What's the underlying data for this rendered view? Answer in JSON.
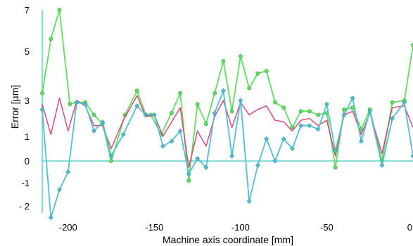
{
  "chart_data": {
    "type": "line",
    "title": "",
    "xlabel": "Machine axis coordinate [mm]",
    "ylabel": "Error [µm]",
    "xlim": [
      -215,
      0
    ],
    "ylim": [
      -2.3,
      7.4
    ],
    "x_ticks": [
      -200,
      -150,
      -100,
      -50,
      0
    ],
    "x_tick_labels": [
      "-200",
      "-150",
      "-100",
      "-50",
      "0"
    ],
    "y_ticks": [
      7,
      5,
      3,
      1,
      0,
      -1,
      -2
    ],
    "y_tick_labels": [
      "7",
      "5",
      "3",
      "1",
      "0",
      "-1",
      "- 2"
    ],
    "y_tick_pixel_anchor": {
      "note": "axis is piecewise / non-uniform as drawn"
    },
    "grid": false,
    "legend": "none",
    "baseline_color": "#5fd0cf",
    "series": [
      {
        "color": "#5fe05f",
        "marker": "circle",
        "points": [
          [
            -215,
            3.3
          ],
          [
            -210,
            5.6
          ],
          [
            -205,
            7.0
          ],
          [
            -199,
            2.8
          ],
          [
            -195,
            2.9
          ],
          [
            -190,
            2.9
          ],
          [
            -185,
            2.2
          ],
          [
            -180,
            1.7
          ],
          [
            -175,
            0.0
          ],
          [
            -167,
            2.2
          ],
          [
            -160,
            3.4
          ],
          [
            -155,
            2.2
          ],
          [
            -152,
            2.2
          ],
          [
            -146,
            1.1
          ],
          [
            -140,
            2.3
          ],
          [
            -135,
            3.3
          ],
          [
            -130,
            -0.9
          ],
          [
            -125,
            2.8
          ],
          [
            -120,
            1.7
          ],
          [
            -115,
            3.3
          ],
          [
            -110,
            4.6
          ],
          [
            -105,
            2.4
          ],
          [
            -100,
            4.8
          ],
          [
            -95,
            3.5
          ],
          [
            -90,
            4.1
          ],
          [
            -85,
            4.2
          ],
          [
            -80,
            2.9
          ],
          [
            -75,
            2.6
          ],
          [
            -70,
            1.5
          ],
          [
            -65,
            2.4
          ],
          [
            -60,
            2.4
          ],
          [
            -55,
            2.2
          ],
          [
            -50,
            2.3
          ],
          [
            -45,
            -0.3
          ],
          [
            -40,
            2.5
          ],
          [
            -35,
            2.6
          ],
          [
            -30,
            1.4
          ],
          [
            -25,
            2.5
          ],
          [
            -18,
            0.0
          ],
          [
            -12,
            2.9
          ],
          [
            -5,
            3.0
          ],
          [
            0,
            5.3
          ]
        ]
      },
      {
        "color": "#e04070",
        "marker": "none",
        "points": [
          [
            -215,
            2.8
          ],
          [
            -210,
            1.1
          ],
          [
            -205,
            3.1
          ],
          [
            -200,
            1.3
          ],
          [
            -195,
            3.0
          ],
          [
            -190,
            2.7
          ],
          [
            -185,
            1.6
          ],
          [
            -180,
            1.6
          ],
          [
            -175,
            0.5
          ],
          [
            -168,
            1.9
          ],
          [
            -160,
            3.2
          ],
          [
            -155,
            2.1
          ],
          [
            -150,
            2.2
          ],
          [
            -145,
            1.0
          ],
          [
            -140,
            1.8
          ],
          [
            -135,
            2.6
          ],
          [
            -130,
            -0.3
          ],
          [
            -125,
            1.3
          ],
          [
            -120,
            0.6
          ],
          [
            -115,
            2.1
          ],
          [
            -110,
            3.0
          ],
          [
            -105,
            1.5
          ],
          [
            -100,
            2.9
          ],
          [
            -95,
            2.2
          ],
          [
            -90,
            2.5
          ],
          [
            -85,
            2.7
          ],
          [
            -80,
            1.9
          ],
          [
            -75,
            1.8
          ],
          [
            -70,
            1.3
          ],
          [
            -65,
            1.9
          ],
          [
            -60,
            2.0
          ],
          [
            -55,
            1.6
          ],
          [
            -50,
            1.9
          ],
          [
            -45,
            0.2
          ],
          [
            -40,
            2.2
          ],
          [
            -35,
            2.4
          ],
          [
            -30,
            1.1
          ],
          [
            -25,
            2.3
          ],
          [
            -18,
            0.3
          ],
          [
            -12,
            2.6
          ],
          [
            -5,
            2.7
          ],
          [
            0,
            1.5
          ]
        ]
      },
      {
        "color": "#50c0d8",
        "marker": "diamond",
        "points": [
          [
            -215,
            2.5
          ],
          [
            -210,
            -2.5
          ],
          [
            -205,
            -1.3
          ],
          [
            -200,
            -0.5
          ],
          [
            -195,
            2.9
          ],
          [
            -190,
            2.8
          ],
          [
            -185,
            1.3
          ],
          [
            -180,
            1.8
          ],
          [
            -175,
            0.2
          ],
          [
            -168,
            1.1
          ],
          [
            -160,
            2.7
          ],
          [
            -155,
            2.2
          ],
          [
            -150,
            2.2
          ],
          [
            -145,
            0.6
          ],
          [
            -140,
            0.8
          ],
          [
            -135,
            1.3
          ],
          [
            -130,
            -0.6
          ],
          [
            -125,
            0.1
          ],
          [
            -120,
            -0.3
          ],
          [
            -115,
            2.3
          ],
          [
            -110,
            3.4
          ],
          [
            -105,
            0.2
          ],
          [
            -100,
            3.0
          ],
          [
            -95,
            -1.8
          ],
          [
            -90,
            -0.2
          ],
          [
            -85,
            0.9
          ],
          [
            -80,
            0.0
          ],
          [
            -75,
            0.9
          ],
          [
            -70,
            0.5
          ],
          [
            -65,
            1.6
          ],
          [
            -60,
            1.6
          ],
          [
            -55,
            1.4
          ],
          [
            -50,
            2.8
          ],
          [
            -45,
            0.4
          ],
          [
            -40,
            2.2
          ],
          [
            -35,
            3.1
          ],
          [
            -30,
            0.8
          ],
          [
            -25,
            2.4
          ],
          [
            -18,
            -0.2
          ],
          [
            -12,
            2.0
          ],
          [
            -5,
            2.9
          ],
          [
            0,
            0.2
          ]
        ]
      }
    ]
  }
}
